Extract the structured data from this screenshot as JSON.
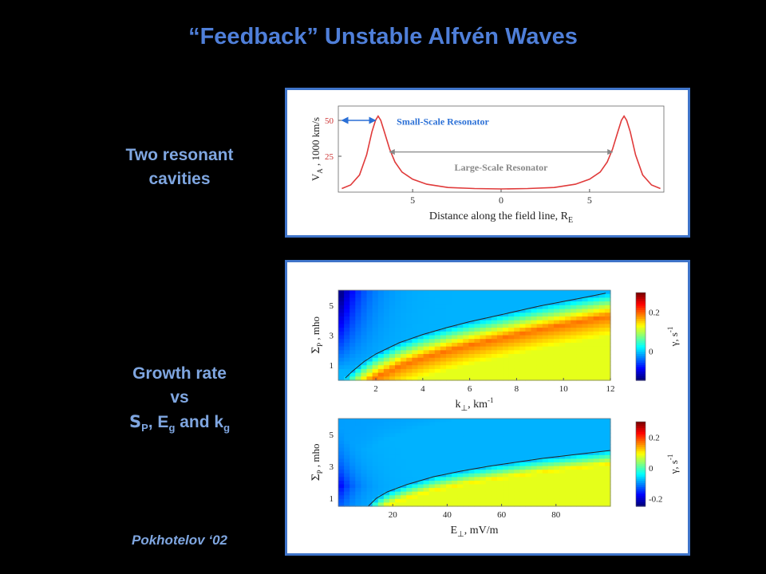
{
  "slide": {
    "title": "“Feedback” Unstable Alfvén Waves",
    "label_top_line1": "Two resonant",
    "label_top_line2": "cavities",
    "label_bottom_line1": "Growth rate",
    "label_bottom_line2": "vs",
    "label_bottom_line3_sigma": "S",
    "label_bottom_line3_rest1": ", E",
    "label_bottom_line3_gamma1": "g",
    "label_bottom_line3_rest2": " and k",
    "label_bottom_line3_gamma2": "g",
    "label_bottom_sub_p": "P",
    "citation": "Pokhotelov ‘02",
    "accent": "#4f7fd9",
    "label_color": "#7fa6e0",
    "frame_color": "#3f74c9"
  },
  "chart_data": [
    {
      "type": "line",
      "xlabel": "Distance along the field line, R",
      "xlabel_sub": "E",
      "ylabel": "V",
      "ylabel_sub": "A",
      "ylabel_rest": " , 1000 km/s",
      "xlim": [
        -9.2,
        9.2
      ],
      "ylim": [
        0,
        60
      ],
      "xticks": [
        -5,
        0,
        5
      ],
      "xtick_labels": [
        "5",
        "0",
        "5"
      ],
      "yticks": [
        25,
        50
      ],
      "ytick_labels": [
        "25",
        "50"
      ],
      "annotations": {
        "small": "Small-Scale Resonator",
        "large": "Large-Scale Resonator"
      },
      "colors": {
        "line": "#e03a3a",
        "small_arrow": "#2a6fd6",
        "small_text": "#2a6fd6",
        "large_arrow": "#888888",
        "large_text": "#888888"
      },
      "series": [
        {
          "x": [
            -9.0,
            -8.5,
            -8.0,
            -7.6,
            -7.3,
            -7.1,
            -6.95,
            -6.8,
            -6.6,
            -6.3,
            -6.0,
            -5.6,
            -5.0,
            -4.2,
            -3.0,
            -1.5,
            0,
            1.5,
            3.0,
            4.2,
            5.0,
            5.6,
            6.0,
            6.3,
            6.6,
            6.8,
            6.95,
            7.1,
            7.3,
            7.6,
            8.0,
            8.5,
            9.0
          ],
          "y": [
            2.5,
            5,
            12,
            26,
            42,
            50,
            53,
            50,
            42,
            30,
            21,
            14,
            9,
            5.5,
            3.2,
            2.5,
            2.2,
            2.5,
            3.2,
            5.5,
            9,
            14,
            21,
            30,
            42,
            50,
            53,
            50,
            42,
            26,
            12,
            5,
            2.5
          ]
        }
      ]
    },
    {
      "type": "heatmap",
      "xlabel": "k",
      "xlabel_sub": "⊥",
      "xlabel_rest": ", km",
      "xlabel_sup": "-1",
      "ylabel": "Σ",
      "ylabel_sub": "P",
      "ylabel_rest": " , mho",
      "xlim": [
        0.4,
        12
      ],
      "ylim": [
        0,
        6
      ],
      "xticks": [
        2,
        4,
        6,
        8,
        10,
        12
      ],
      "xtick_labels": [
        "2",
        "4",
        "6",
        "8",
        "10",
        "12"
      ],
      "yticks": [
        1,
        3,
        5
      ],
      "ytick_labels": [
        "1",
        "3",
        "5"
      ],
      "colorbar": {
        "label": "γ, s",
        "label_sup": "-1",
        "ticks": [
          "0.2",
          "0"
        ],
        "tick_values": [
          0.2,
          0
        ],
        "range": [
          -0.15,
          0.3
        ]
      },
      "curve": {
        "x": [
          0.7,
          1.0,
          1.5,
          2.0,
          3.0,
          4.0,
          5.0,
          6.0,
          7.0,
          8.0,
          9.0,
          10.0,
          11.0,
          11.8
        ],
        "y": [
          0.15,
          0.6,
          1.25,
          1.75,
          2.5,
          3.05,
          3.5,
          3.9,
          4.25,
          4.6,
          4.95,
          5.25,
          5.55,
          5.8
        ]
      }
    },
    {
      "type": "heatmap",
      "xlabel": "E",
      "xlabel_sub": "⊥",
      "xlabel_rest": ", mV/m",
      "ylabel": "Σ",
      "ylabel_sub": "P",
      "ylabel_rest": " , mho",
      "xlim": [
        0,
        100
      ],
      "ylim": [
        0.5,
        6
      ],
      "xticks": [
        20,
        40,
        60,
        80
      ],
      "xtick_labels": [
        "20",
        "40",
        "60",
        "80"
      ],
      "yticks": [
        1,
        3,
        5
      ],
      "ytick_labels": [
        "1",
        "3",
        "5"
      ],
      "colorbar": {
        "label": "γ, s",
        "label_sup": "-1",
        "ticks": [
          "0.2",
          "0",
          "-0.2"
        ],
        "tick_values": [
          0.2,
          0,
          -0.2
        ],
        "range": [
          -0.25,
          0.3
        ]
      },
      "curve": {
        "x": [
          11,
          14,
          18,
          25,
          35,
          45,
          55,
          65,
          75,
          85,
          95,
          100
        ],
        "y": [
          0.5,
          1.0,
          1.4,
          1.85,
          2.35,
          2.7,
          3.0,
          3.25,
          3.5,
          3.7,
          3.9,
          4.0
        ]
      }
    }
  ]
}
